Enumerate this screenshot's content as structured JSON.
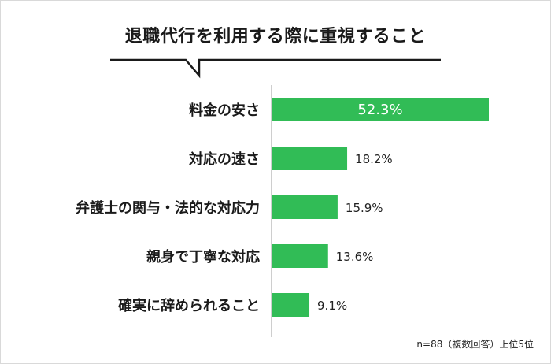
{
  "chart_data": {
    "type": "bar",
    "orientation": "horizontal",
    "title": "退職代行を利用する際に重視すること",
    "categories": [
      "料金の安さ",
      "対応の速さ",
      "弁護士の関与・法的な対応力",
      "親身で丁寧な対応",
      "確実に辞められること"
    ],
    "values": [
      52.3,
      18.2,
      15.9,
      13.6,
      9.1
    ],
    "value_labels": [
      "52.3%",
      "18.2%",
      "15.9%",
      "13.6%",
      "9.1%"
    ],
    "unit": "%",
    "xlim": [
      0,
      60
    ],
    "grid": false,
    "bar_color": "#31bc56",
    "inside_label_color": "#ffffff",
    "outside_label_color": "#222222"
  },
  "note": "n=88（複数回答）上位5位"
}
